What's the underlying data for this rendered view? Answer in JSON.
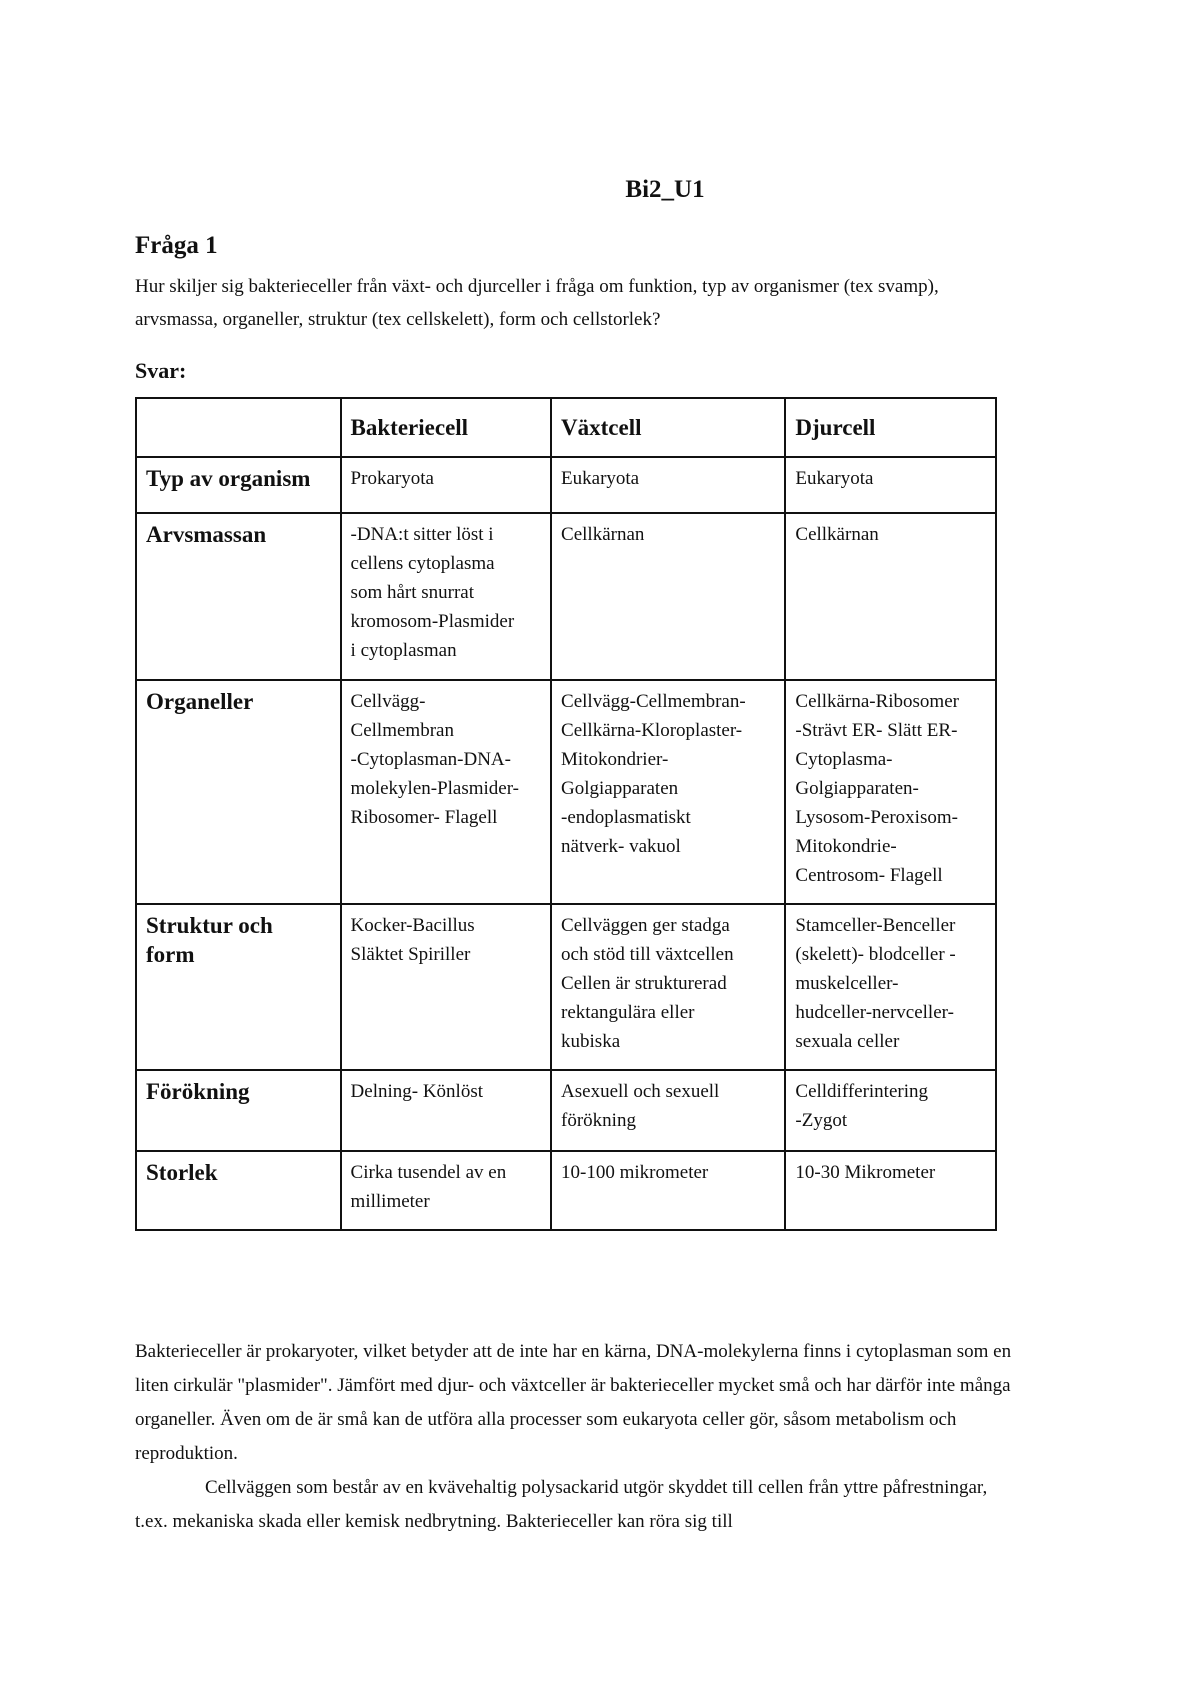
{
  "title": "Bi2_U1",
  "question": {
    "heading": "Fråga 1",
    "text": "Hur skiljer sig bakterieceller från växt- och djurceller i fråga om funktion, typ av organismer (tex svamp), arvsmassa, organeller, struktur (tex cellskelett), form och cellstorlek?"
  },
  "answer_label": "Svar:",
  "table": {
    "headers": [
      "",
      "Bakteriecell",
      "Växtcell",
      "Djurcell"
    ],
    "rows": [
      {
        "label": "Typ av organism",
        "cells": [
          "Prokaryota",
          "Eukaryota",
          "Eukaryota"
        ]
      },
      {
        "label": "Arvsmassan",
        "cells": [
          "-DNA:t sitter löst i\ncellens cytoplasma\nsom hårt snurrat\nkromosom-Plasmider\ni cytoplasman",
          "Cellkärnan",
          "Cellkärnan"
        ]
      },
      {
        "label": "Organeller",
        "cells": [
          "Cellvägg-\nCellmembran\n-Cytoplasman-DNA-\nmolekylen-Plasmider-\nRibosomer- Flagell",
          "Cellvägg-Cellmembran-\nCellkärna-Kloroplaster-\nMitokondrier-\nGolgiapparaten\n-endoplasmatiskt\nnätverk- vakuol",
          "Cellkärna-Ribosomer\n-Strävt ER- Slätt ER-\nCytoplasma-\nGolgiapparaten-\nLysosom-Peroxisom-\nMitokondrie-\nCentrosom- Flagell"
        ]
      },
      {
        "label": "Struktur och\nform",
        "cells": [
          "Kocker-Bacillus\nSläktet Spiriller",
          "Cellväggen ger stadga\noch stöd till växtcellen\nCellen är strukturerad\nrektangulära eller\nkubiska",
          "Stamceller-Benceller\n(skelett)- blodceller -\nmuskelceller-\nhudceller-nervceller-\nsexuala celler"
        ]
      },
      {
        "label": "Förökning",
        "cells": [
          "Delning- Könlöst",
          "Asexuell och sexuell\nförökning",
          "Celldifferintering\n-Zygot"
        ]
      },
      {
        "label": "Storlek",
        "cells": [
          "Cirka tusendel av en\nmillimeter",
          "10-100 mikrometer",
          "10-30 Mikrometer"
        ]
      }
    ]
  },
  "paragraphs": [
    "Bakterieceller är prokaryoter, vilket betyder att de inte har en kärna, DNA-molekylerna finns i cytoplasman som en liten cirkulär \"plasmider\". Jämfört med djur- och växtceller är bakterieceller mycket små och har därför inte många organeller. Även om de är små kan de utföra alla processer som eukaryota celler gör, såsom metabolism och reproduktion.",
    "Cellväggen som består av en kvävehaltig polysackarid utgör skyddet till cellen från yttre påfrestningar, t.ex. mekaniska skada eller kemisk nedbrytning. Bakterieceller kan röra sig till"
  ]
}
